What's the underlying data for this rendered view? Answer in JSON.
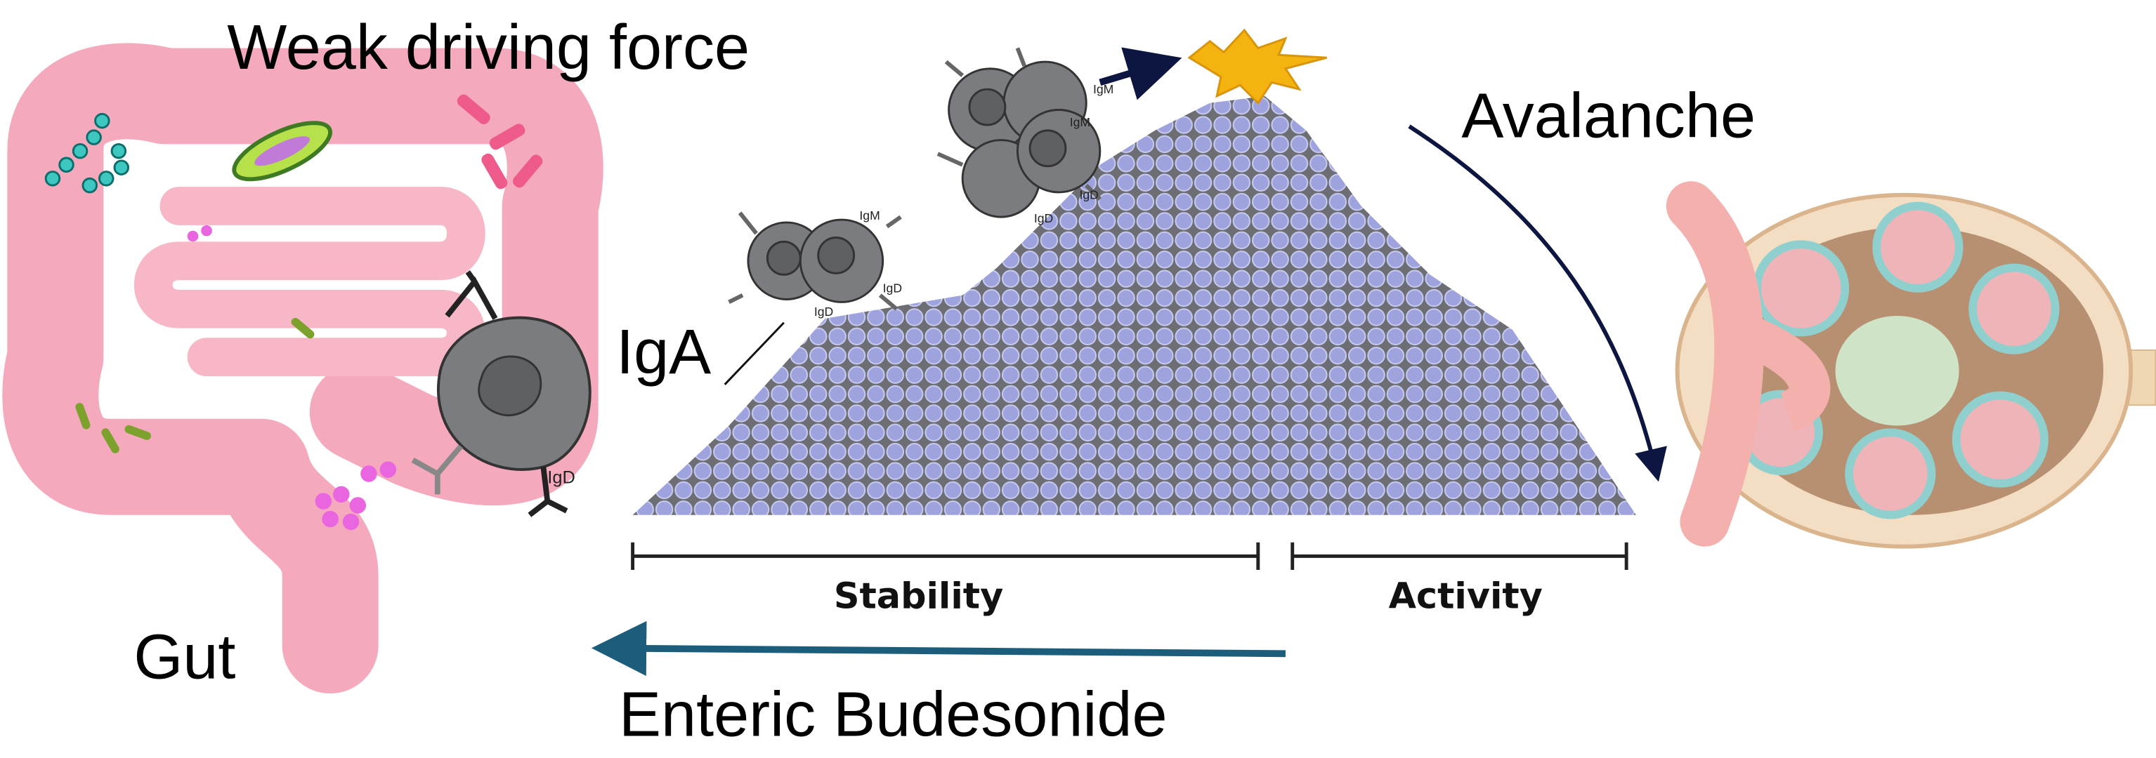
{
  "labels": {
    "weak_driving_force": "Weak driving force",
    "avalanche": "Avalanche",
    "iga": "IgA",
    "gut": "Gut",
    "stability": "Stability",
    "activity": "Activity",
    "enteric_budesonide": "Enteric Budesonide"
  },
  "cell_labels": [
    "IgD",
    "IgM",
    "IgD",
    "IgM",
    "IgM",
    "IgD",
    "IgD"
  ]
}
